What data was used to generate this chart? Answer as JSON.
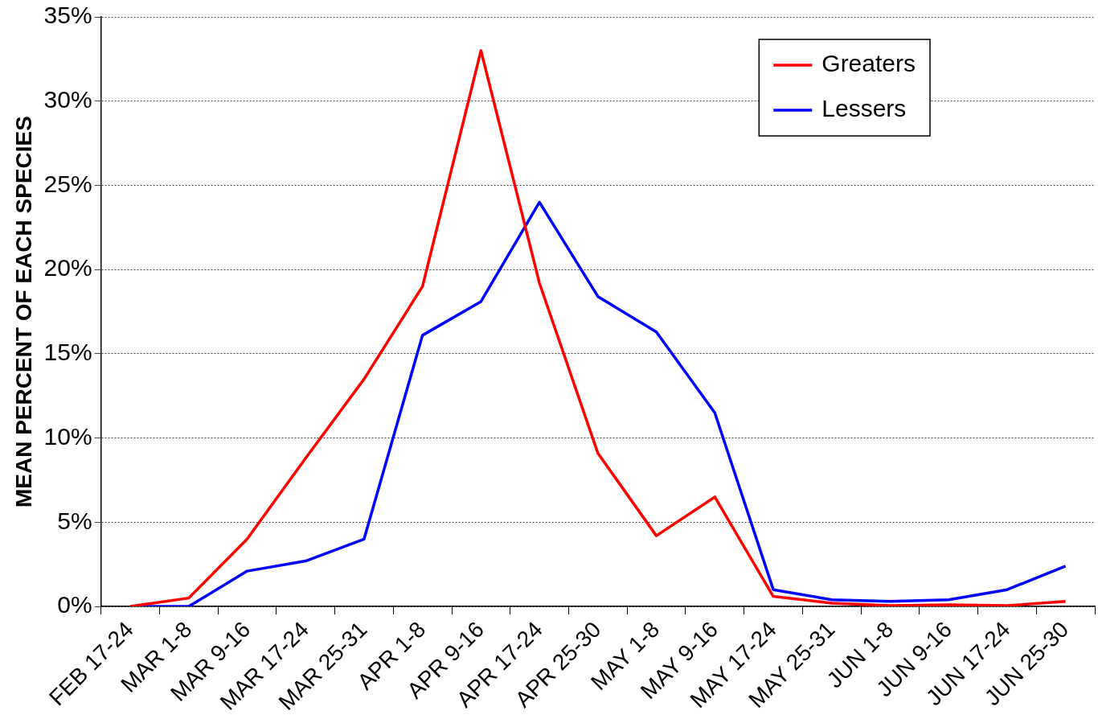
{
  "chart_data": {
    "type": "line",
    "ylabel": "MEAN PERCENT OF EACH SPECIES",
    "categories": [
      "FEB 17-24",
      "MAR 1-8",
      "MAR 9-16",
      "MAR 17-24",
      "MAR 25-31",
      "APR 1-8",
      "APR 9-16",
      "APR 17-24",
      "APR 25-30",
      "MAY 1-8",
      "MAY 9-16",
      "MAY 17-24",
      "MAY 25-31",
      "JUN 1-8",
      "JUN 9-16",
      "JUN 17-24",
      "JUN 25-30"
    ],
    "series": [
      {
        "name": "Greaters",
        "color": "#ff0000",
        "values": [
          0,
          0.5,
          4.0,
          8.8,
          13.5,
          19.0,
          33.0,
          19.2,
          9.1,
          4.2,
          6.5,
          0.6,
          0.2,
          0.05,
          0.1,
          0.05,
          0.3
        ]
      },
      {
        "name": "Lessers",
        "color": "#0000ff",
        "values": [
          0,
          0,
          2.1,
          2.7,
          4.0,
          16.1,
          18.1,
          24.0,
          18.4,
          16.3,
          11.5,
          1.0,
          0.4,
          0.3,
          0.4,
          1.0,
          2.4
        ]
      }
    ],
    "ylim": [
      0,
      35
    ],
    "yticks": [
      {
        "value": 0,
        "label": "0%"
      },
      {
        "value": 5,
        "label": "5%"
      },
      {
        "value": 10,
        "label": "10%"
      },
      {
        "value": 15,
        "label": "15%"
      },
      {
        "value": 20,
        "label": "20%"
      },
      {
        "value": 25,
        "label": "25%"
      },
      {
        "value": 30,
        "label": "30%"
      },
      {
        "value": 35,
        "label": "35%"
      }
    ],
    "grid": "y",
    "legend": "top right",
    "marker": "none",
    "line_style": "solid"
  }
}
